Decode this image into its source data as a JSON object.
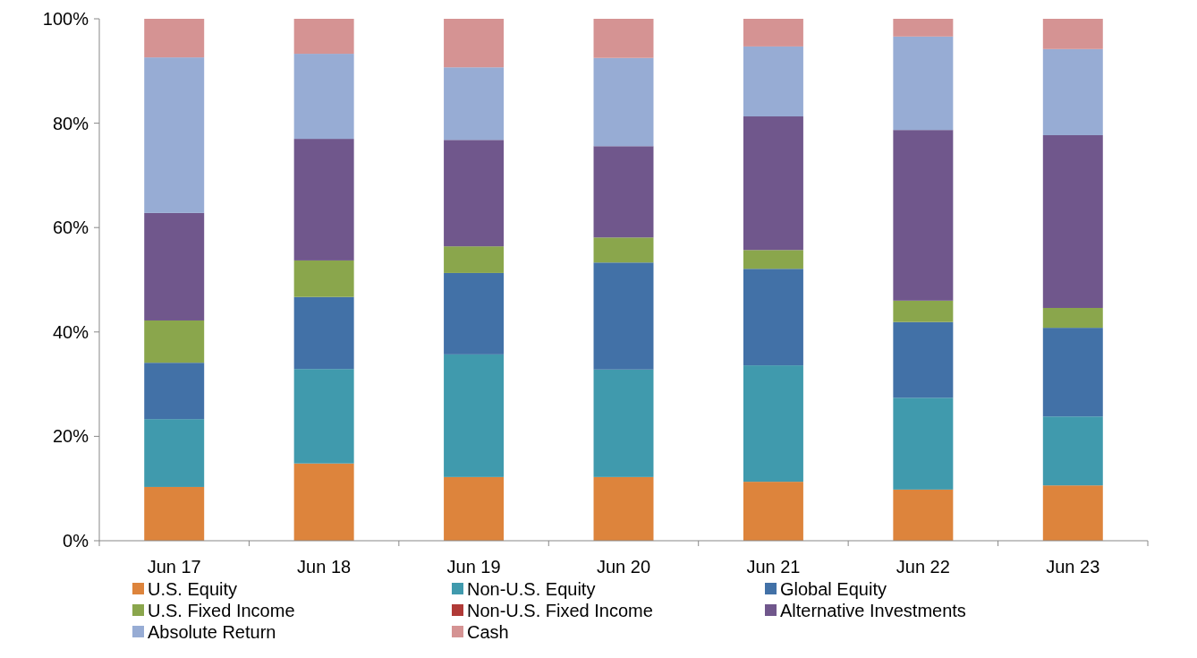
{
  "chart_data": {
    "type": "bar",
    "stacked": true,
    "categories": [
      "Jun 17",
      "Jun 18",
      "Jun 19",
      "Jun 20",
      "Jun 21",
      "Jun 22",
      "Jun 23"
    ],
    "ylim": [
      0,
      100
    ],
    "yticks": [
      {
        "value": 0,
        "label": "0%"
      },
      {
        "value": 20,
        "label": "20%"
      },
      {
        "value": 40,
        "label": "40%"
      },
      {
        "value": 60,
        "label": "60%"
      },
      {
        "value": 80,
        "label": "80%"
      },
      {
        "value": 100,
        "label": "100%"
      }
    ],
    "grid": false,
    "legend": "bottom",
    "series": [
      {
        "name": "U.S. Equity",
        "color": "#dd843c",
        "values": [
          10.3,
          14.8,
          12.2,
          12.2,
          11.3,
          9.8,
          10.6
        ]
      },
      {
        "name": "Non-U.S. Equity",
        "color": "#409aad",
        "values": [
          13.0,
          18.1,
          23.5,
          20.6,
          22.3,
          17.6,
          13.2
        ]
      },
      {
        "name": "Global Equity",
        "color": "#4271a7",
        "values": [
          10.8,
          13.8,
          15.6,
          20.5,
          18.5,
          14.5,
          17.0
        ]
      },
      {
        "name": "U.S. Fixed Income",
        "color": "#8aa64c",
        "values": [
          8.1,
          7.0,
          5.1,
          4.8,
          3.6,
          4.1,
          3.8
        ]
      },
      {
        "name": "Non-U.S. Fixed Income",
        "color": "#b03a37",
        "values": [
          0,
          0,
          0,
          0,
          0,
          0,
          0
        ]
      },
      {
        "name": "Alternative Investments",
        "color": "#70578c",
        "values": [
          20.6,
          23.3,
          20.4,
          17.5,
          25.6,
          32.7,
          33.1
        ]
      },
      {
        "name": "Absolute Return",
        "color": "#97acd4",
        "values": [
          29.8,
          16.3,
          13.9,
          16.9,
          13.4,
          17.9,
          16.5
        ]
      },
      {
        "name": "Cash",
        "color": "#d59393",
        "values": [
          7.4,
          6.7,
          9.3,
          7.5,
          5.3,
          3.4,
          5.8
        ]
      }
    ]
  }
}
